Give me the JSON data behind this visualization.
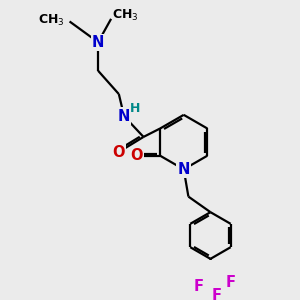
{
  "background_color": "#ebebeb",
  "figsize": [
    3.0,
    3.0
  ],
  "dpi": 100,
  "atom_colors": {
    "C": "#000000",
    "N": "#0000cc",
    "O": "#cc0000",
    "F": "#cc00cc",
    "H": "#008888"
  },
  "bond_color": "#000000",
  "bond_width": 1.6,
  "font_size": 10.5
}
